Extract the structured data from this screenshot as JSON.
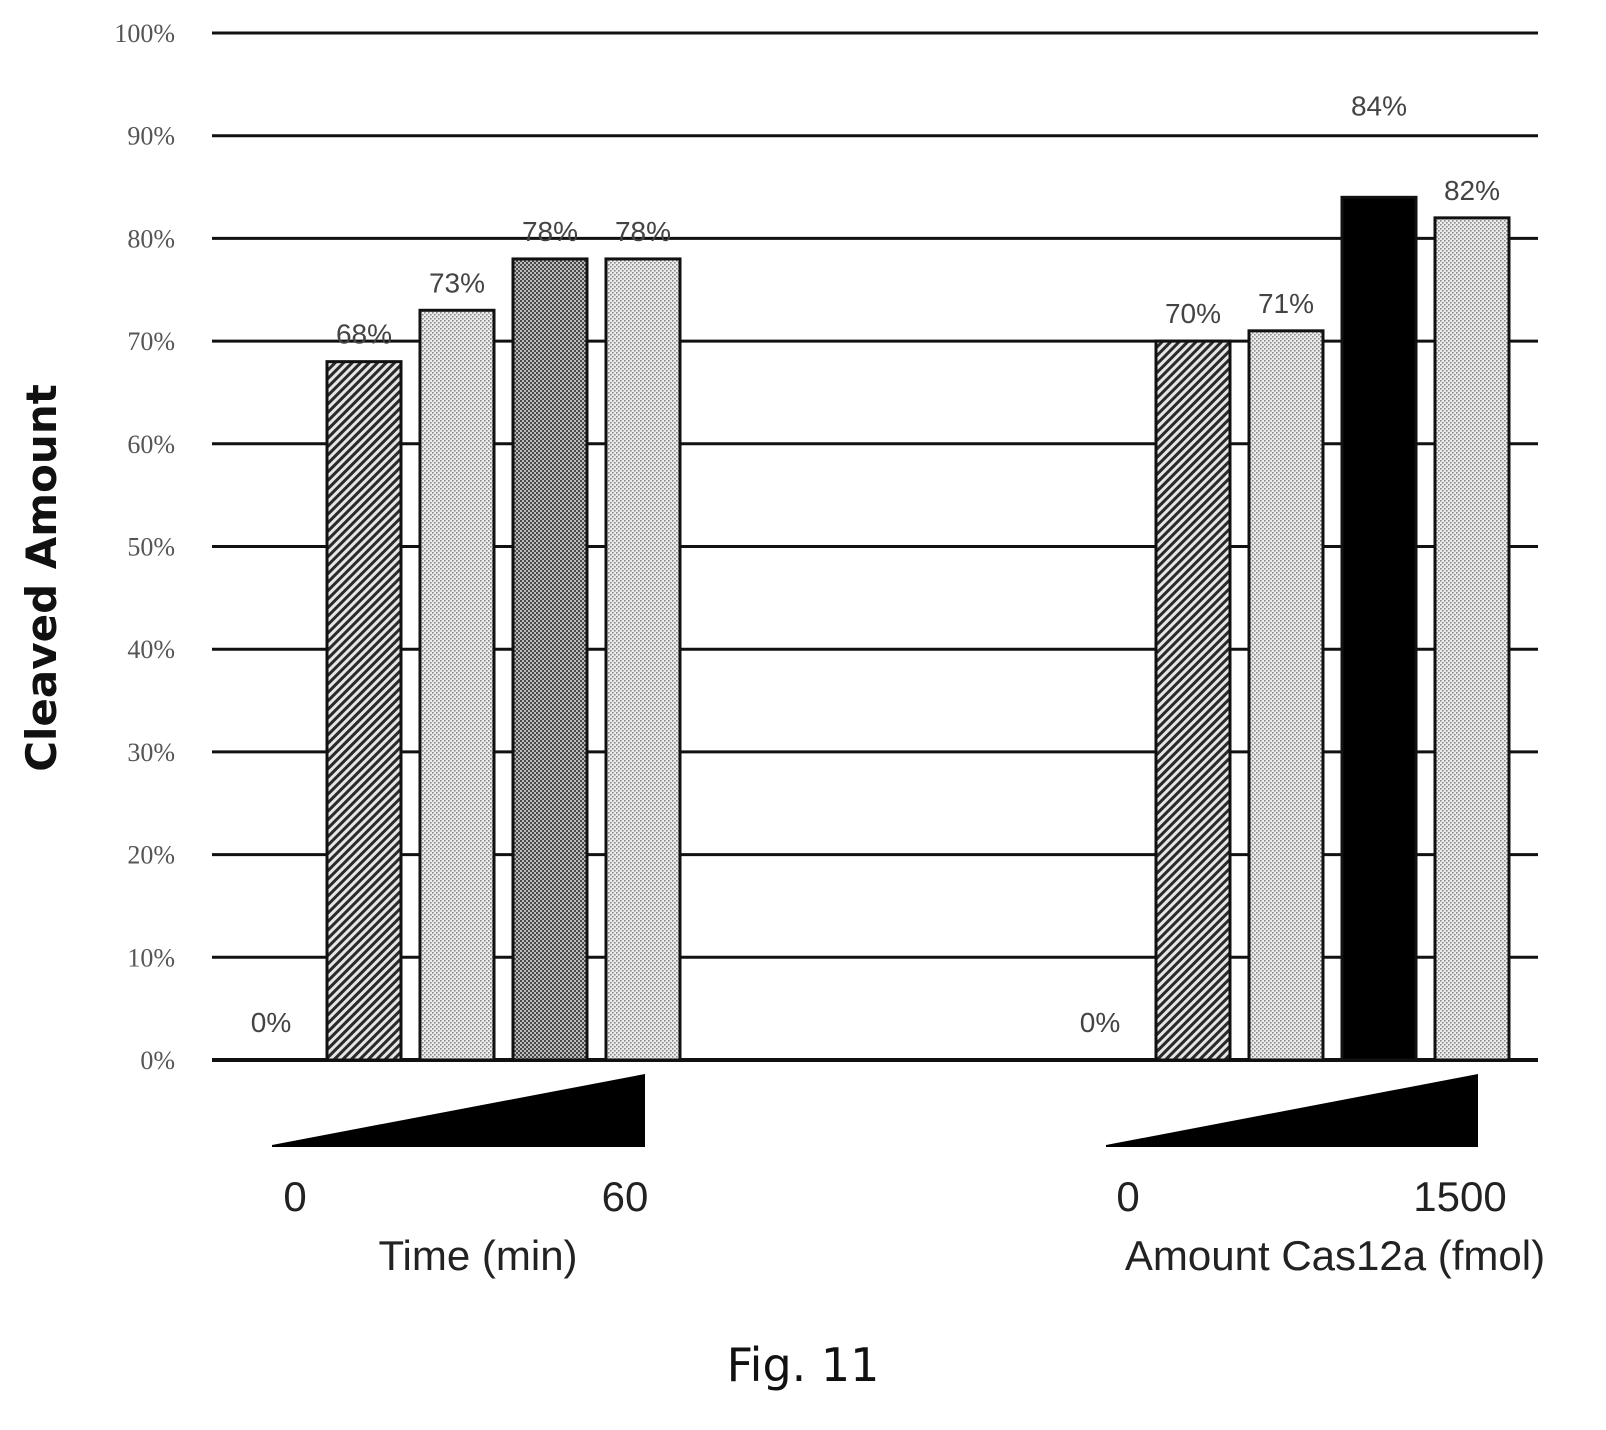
{
  "figure_caption": "Fig. 11",
  "chart_data": {
    "type": "bar",
    "ylabel": "Cleaved Amount",
    "ylim": [
      0,
      100
    ],
    "yticks": [
      "0%",
      "10%",
      "20%",
      "30%",
      "40%",
      "50%",
      "60%",
      "70%",
      "80%",
      "90%",
      "100%"
    ],
    "grid": true,
    "groups": [
      {
        "axis_title": "Time (min)",
        "gradient_start": "0",
        "gradient_end": "60",
        "bars": [
          {
            "value": 0,
            "label": "0%",
            "pattern": "none"
          },
          {
            "value": 68,
            "label": "68%",
            "pattern": "diagonal-hatch"
          },
          {
            "value": 73,
            "label": "73%",
            "pattern": "light-dots"
          },
          {
            "value": 78,
            "label": "78%",
            "pattern": "dense-dots"
          },
          {
            "value": 78,
            "label": "78%",
            "pattern": "light-dots"
          }
        ]
      },
      {
        "axis_title": "Amount Cas12a (fmol)",
        "gradient_start": "0",
        "gradient_end": "1500",
        "bars": [
          {
            "value": 0,
            "label": "0%",
            "pattern": "none"
          },
          {
            "value": 70,
            "label": "70%",
            "pattern": "diagonal-hatch"
          },
          {
            "value": 71,
            "label": "71%",
            "pattern": "light-dots"
          },
          {
            "value": 84,
            "label": "84%",
            "pattern": "solid-black"
          },
          {
            "value": 82,
            "label": "82%",
            "pattern": "light-dots"
          }
        ]
      }
    ]
  }
}
